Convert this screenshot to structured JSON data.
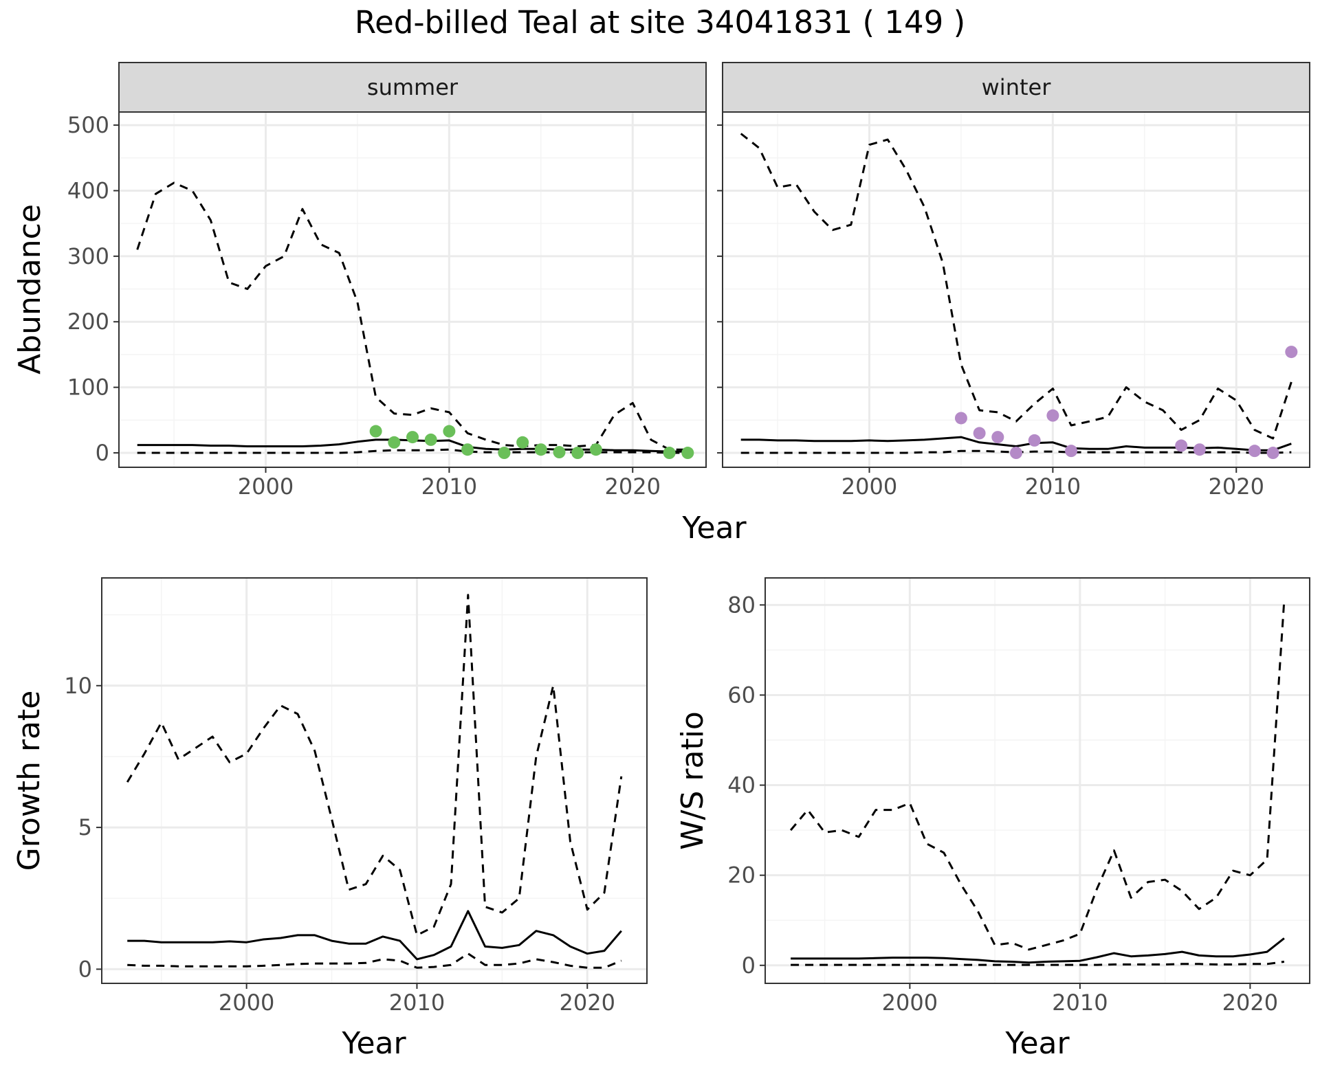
{
  "title": "Red-billed Teal at site 34041831 ( 149 )",
  "colors": {
    "summer_points": "#6abf59",
    "winter_points": "#b48ac7",
    "line": "#000000",
    "grid_major": "#ebebeb",
    "grid_minor": "#f4f4f4",
    "strip_fill": "#d9d9d9"
  },
  "chart_data": [
    {
      "type": "line",
      "facet": "summer",
      "xlabel": "Year",
      "ylabel": "Abundance",
      "xlim": [
        1992,
        2024
      ],
      "ylim": [
        -22,
        520
      ],
      "xticks": [
        2000,
        2010,
        2020
      ],
      "yticks": [
        0,
        100,
        200,
        300,
        400,
        500
      ],
      "grid": true,
      "series": [
        {
          "style": "solid",
          "x": [
            1993,
            1994,
            1995,
            1996,
            1997,
            1998,
            1999,
            2000,
            2001,
            2002,
            2003,
            2004,
            2005,
            2006,
            2007,
            2008,
            2009,
            2010,
            2011,
            2012,
            2013,
            2014,
            2015,
            2016,
            2017,
            2018,
            2019,
            2020,
            2021,
            2022,
            2023
          ],
          "values": [
            12,
            12,
            12,
            12,
            11,
            11,
            10,
            10,
            10,
            10,
            11,
            13,
            17,
            20,
            20,
            19,
            18,
            19,
            9,
            6,
            5,
            6,
            6,
            5,
            5,
            5,
            4,
            4,
            3,
            2,
            2
          ]
        },
        {
          "style": "dashed",
          "x": [
            1993,
            1994,
            1995,
            1996,
            1997,
            1998,
            1999,
            2000,
            2001,
            2002,
            2003,
            2004,
            2005,
            2006,
            2007,
            2008,
            2009,
            2010,
            2011,
            2012,
            2013,
            2014,
            2015,
            2016,
            2017,
            2018,
            2019,
            2020,
            2021,
            2022,
            2023
          ],
          "values": [
            310,
            395,
            412,
            400,
            355,
            260,
            250,
            285,
            300,
            372,
            318,
            305,
            230,
            85,
            60,
            58,
            68,
            62,
            30,
            20,
            12,
            10,
            12,
            12,
            10,
            12,
            58,
            76,
            20,
            5,
            5
          ]
        },
        {
          "style": "dashed",
          "x": [
            1993,
            1994,
            1995,
            1996,
            1997,
            1998,
            1999,
            2000,
            2001,
            2002,
            2003,
            2004,
            2005,
            2006,
            2007,
            2008,
            2009,
            2010,
            2011,
            2012,
            2013,
            2014,
            2015,
            2016,
            2017,
            2018,
            2019,
            2020,
            2021,
            2022,
            2023
          ],
          "values": [
            0,
            0,
            0,
            0,
            0,
            0,
            0,
            0,
            0,
            0,
            0,
            0,
            1,
            3,
            4,
            4,
            4,
            5,
            2,
            1,
            1,
            1,
            1,
            1,
            1,
            1,
            1,
            1,
            1,
            0,
            0
          ]
        },
        {
          "style": "points",
          "x": [
            2006,
            2007,
            2008,
            2009,
            2010,
            2011,
            2013,
            2014,
            2015,
            2016,
            2017,
            2018,
            2022,
            2023
          ],
          "values": [
            33,
            16,
            24,
            20,
            33,
            5,
            0,
            16,
            5,
            1,
            0,
            5,
            0,
            0
          ]
        }
      ]
    },
    {
      "type": "line",
      "facet": "winter",
      "xlabel": "Year",
      "ylabel": "",
      "xlim": [
        1992,
        2024
      ],
      "ylim": [
        -22,
        520
      ],
      "xticks": [
        2000,
        2010,
        2020
      ],
      "yticks": [
        0,
        100,
        200,
        300,
        400,
        500
      ],
      "grid": true,
      "series": [
        {
          "style": "solid",
          "x": [
            1993,
            1994,
            1995,
            1996,
            1997,
            1998,
            1999,
            2000,
            2001,
            2002,
            2003,
            2004,
            2005,
            2006,
            2007,
            2008,
            2009,
            2010,
            2011,
            2012,
            2013,
            2014,
            2015,
            2016,
            2017,
            2018,
            2019,
            2020,
            2021,
            2022,
            2023
          ],
          "values": [
            20,
            20,
            19,
            19,
            18,
            18,
            18,
            19,
            18,
            19,
            20,
            22,
            24,
            16,
            13,
            10,
            15,
            16,
            7,
            6,
            6,
            10,
            8,
            8,
            8,
            7,
            8,
            6,
            4,
            4,
            14
          ]
        },
        {
          "style": "dashed",
          "x": [
            1993,
            1994,
            1995,
            1996,
            1997,
            1998,
            1999,
            2000,
            2001,
            2002,
            2003,
            2004,
            2005,
            2006,
            2007,
            2008,
            2009,
            2010,
            2011,
            2012,
            2013,
            2014,
            2015,
            2016,
            2017,
            2018,
            2019,
            2020,
            2021,
            2022,
            2023
          ],
          "values": [
            487,
            465,
            405,
            410,
            368,
            340,
            348,
            470,
            478,
            432,
            375,
            290,
            135,
            65,
            62,
            48,
            75,
            98,
            42,
            48,
            55,
            100,
            78,
            65,
            35,
            50,
            98,
            80,
            35,
            22,
            108
          ]
        },
        {
          "style": "dashed",
          "x": [
            1993,
            1994,
            1995,
            1996,
            1997,
            1998,
            1999,
            2000,
            2001,
            2002,
            2003,
            2004,
            2005,
            2006,
            2007,
            2008,
            2009,
            2010,
            2011,
            2012,
            2013,
            2014,
            2015,
            2016,
            2017,
            2018,
            2019,
            2020,
            2021,
            2022,
            2023
          ],
          "values": [
            0,
            0,
            0,
            0,
            0,
            0,
            0,
            0,
            0,
            0,
            1,
            1,
            3,
            3,
            2,
            1,
            2,
            2,
            1,
            1,
            1,
            1,
            1,
            1,
            1,
            1,
            1,
            1,
            0,
            0,
            1
          ]
        },
        {
          "style": "points",
          "x": [
            2005,
            2006,
            2007,
            2008,
            2009,
            2010,
            2011,
            2017,
            2018,
            2021,
            2022,
            2023
          ],
          "values": [
            53,
            30,
            24,
            0,
            19,
            57,
            3,
            11,
            5,
            3,
            0,
            154
          ]
        }
      ]
    },
    {
      "type": "line",
      "xlabel": "Year",
      "ylabel": "Growth rate",
      "xlim": [
        1991.5,
        2023.5
      ],
      "ylim": [
        -0.5,
        13.8
      ],
      "xticks": [
        2000,
        2010,
        2020
      ],
      "yticks": [
        0,
        5,
        10
      ],
      "grid": true,
      "series": [
        {
          "style": "solid",
          "x": [
            1993,
            1994,
            1995,
            1996,
            1997,
            1998,
            1999,
            2000,
            2001,
            2002,
            2003,
            2004,
            2005,
            2006,
            2007,
            2008,
            2009,
            2010,
            2011,
            2012,
            2013,
            2014,
            2015,
            2016,
            2017,
            2018,
            2019,
            2020,
            2021,
            2022
          ],
          "values": [
            1.0,
            1.0,
            0.95,
            0.95,
            0.95,
            0.95,
            0.98,
            0.95,
            1.05,
            1.1,
            1.2,
            1.2,
            1.0,
            0.9,
            0.9,
            1.15,
            1.0,
            0.35,
            0.5,
            0.8,
            2.05,
            0.8,
            0.75,
            0.85,
            1.35,
            1.2,
            0.8,
            0.55,
            0.65,
            1.35
          ]
        },
        {
          "style": "dashed",
          "x": [
            1993,
            1994,
            1995,
            1996,
            1997,
            1998,
            1999,
            2000,
            2001,
            2002,
            2003,
            2004,
            2005,
            2006,
            2007,
            2008,
            2009,
            2010,
            2011,
            2012,
            2013,
            2014,
            2015,
            2016,
            2017,
            2018,
            2019,
            2020,
            2021,
            2022
          ],
          "values": [
            6.6,
            7.6,
            8.7,
            7.4,
            7.8,
            8.2,
            7.3,
            7.6,
            8.5,
            9.3,
            9.0,
            7.7,
            5.3,
            2.8,
            3.0,
            4.0,
            3.5,
            1.2,
            1.5,
            3.0,
            13.2,
            2.2,
            2.0,
            2.5,
            7.5,
            10.0,
            4.5,
            2.1,
            2.7,
            6.8
          ]
        },
        {
          "style": "dashed",
          "x": [
            1993,
            1994,
            1995,
            1996,
            1997,
            1998,
            1999,
            2000,
            2001,
            2002,
            2003,
            2004,
            2005,
            2006,
            2007,
            2008,
            2009,
            2010,
            2011,
            2012,
            2013,
            2014,
            2015,
            2016,
            2017,
            2018,
            2019,
            2020,
            2021,
            2022
          ],
          "values": [
            0.15,
            0.12,
            0.12,
            0.1,
            0.1,
            0.1,
            0.1,
            0.1,
            0.12,
            0.15,
            0.18,
            0.2,
            0.2,
            0.2,
            0.22,
            0.35,
            0.3,
            0.05,
            0.08,
            0.15,
            0.55,
            0.15,
            0.15,
            0.2,
            0.35,
            0.25,
            0.12,
            0.05,
            0.05,
            0.3
          ]
        }
      ]
    },
    {
      "type": "line",
      "xlabel": "Year",
      "ylabel": "W/S ratio",
      "xlim": [
        1991.5,
        2023.5
      ],
      "ylim": [
        -4,
        86
      ],
      "xticks": [
        2000,
        2010,
        2020
      ],
      "yticks": [
        0,
        20,
        40,
        60,
        80
      ],
      "grid": true,
      "series": [
        {
          "style": "solid",
          "x": [
            1993,
            1994,
            1995,
            1996,
            1997,
            1998,
            1999,
            2000,
            2001,
            2002,
            2003,
            2004,
            2005,
            2006,
            2007,
            2008,
            2009,
            2010,
            2011,
            2012,
            2013,
            2014,
            2015,
            2016,
            2017,
            2018,
            2019,
            2020,
            2021,
            2022
          ],
          "values": [
            1.5,
            1.5,
            1.5,
            1.5,
            1.5,
            1.6,
            1.7,
            1.7,
            1.7,
            1.6,
            1.4,
            1.2,
            0.9,
            0.8,
            0.6,
            0.8,
            0.9,
            1.0,
            1.8,
            2.7,
            2.0,
            2.2,
            2.5,
            3.0,
            2.2,
            2.0,
            2.0,
            2.4,
            3.0,
            6.0
          ]
        },
        {
          "style": "dashed",
          "x": [
            1993,
            1994,
            1995,
            1996,
            1997,
            1998,
            1999,
            2000,
            2001,
            2002,
            2003,
            2004,
            2005,
            2006,
            2007,
            2008,
            2009,
            2010,
            2011,
            2012,
            2013,
            2014,
            2015,
            2016,
            2017,
            2018,
            2019,
            2020,
            2021,
            2022
          ],
          "values": [
            30,
            34.5,
            29.5,
            30,
            28.5,
            34.5,
            34.5,
            36,
            27,
            25,
            18,
            12,
            4.5,
            5,
            3.5,
            4.5,
            5.5,
            7,
            17,
            25.5,
            15,
            18.5,
            19,
            16.5,
            12.5,
            15,
            21,
            20,
            23.5,
            81
          ]
        },
        {
          "style": "dashed",
          "x": [
            1993,
            1994,
            1995,
            1996,
            1997,
            1998,
            1999,
            2000,
            2001,
            2002,
            2003,
            2004,
            2005,
            2006,
            2007,
            2008,
            2009,
            2010,
            2011,
            2012,
            2013,
            2014,
            2015,
            2016,
            2017,
            2018,
            2019,
            2020,
            2021,
            2022
          ],
          "values": [
            0.1,
            0.1,
            0.1,
            0.1,
            0.1,
            0.1,
            0.1,
            0.1,
            0.1,
            0.1,
            0.1,
            0.1,
            0.1,
            0.1,
            0.1,
            0.1,
            0.1,
            0.1,
            0.1,
            0.2,
            0.2,
            0.2,
            0.2,
            0.3,
            0.3,
            0.2,
            0.2,
            0.3,
            0.3,
            0.8
          ]
        }
      ]
    }
  ]
}
